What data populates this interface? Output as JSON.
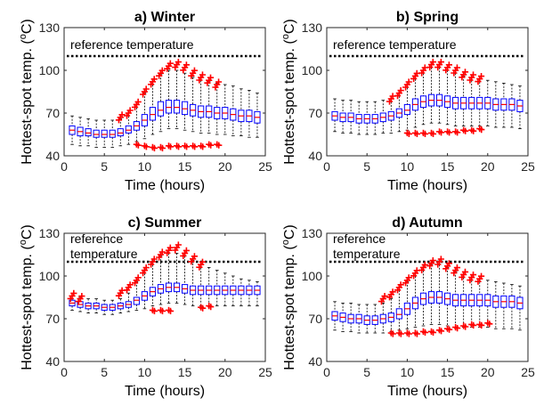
{
  "chart_data": [
    {
      "type": "box",
      "title": "a) Winter",
      "xlabel": "Time (hours)",
      "ylabel": "Hottest-spot temp. (",
      "ylabel_sup": "o",
      "ylabel_end": "C)",
      "xlim": [
        0,
        25
      ],
      "ylim": [
        40,
        130
      ],
      "xticks": [
        0,
        5,
        10,
        15,
        20,
        25
      ],
      "yticks": [
        40,
        70,
        100,
        130
      ],
      "reference_value": 110,
      "reference_label": [
        "reference temperature"
      ],
      "hours": [
        1,
        2,
        3,
        4,
        5,
        6,
        7,
        8,
        9,
        10,
        11,
        12,
        13,
        14,
        15,
        16,
        17,
        18,
        19,
        20,
        21,
        22,
        23,
        24
      ],
      "box_q1": [
        55,
        54,
        54,
        53,
        53,
        53,
        54,
        56,
        58,
        61,
        65,
        68,
        70,
        70,
        69,
        68,
        67,
        67,
        66,
        66,
        65,
        64,
        64,
        63
      ],
      "box_median": [
        58,
        57,
        56,
        55,
        55,
        55,
        56,
        58,
        61,
        65,
        69,
        72,
        74,
        74,
        73,
        72,
        71,
        71,
        70,
        70,
        69,
        68,
        68,
        67
      ],
      "box_q3": [
        61,
        60,
        59,
        58,
        58,
        58,
        59,
        61,
        64,
        69,
        74,
        78,
        79,
        79,
        78,
        76,
        75,
        75,
        74,
        74,
        73,
        72,
        72,
        71
      ],
      "whisker_low": [
        48,
        47,
        47,
        46,
        46,
        46,
        47,
        48,
        50,
        52,
        55,
        57,
        59,
        59,
        58,
        57,
        56,
        56,
        55,
        55,
        54,
        54,
        53,
        53
      ],
      "whisker_high": [
        68,
        67,
        66,
        65,
        65,
        65,
        66,
        70,
        76,
        84,
        92,
        97,
        100,
        100,
        98,
        95,
        93,
        92,
        91,
        90,
        89,
        87,
        86,
        84
      ],
      "outliers_high": [
        [
          7,
          67
        ],
        [
          8,
          70
        ],
        [
          9,
          76
        ],
        [
          10,
          85
        ],
        [
          11,
          92
        ],
        [
          12,
          98
        ],
        [
          13,
          103
        ],
        [
          14,
          104
        ],
        [
          15,
          102
        ],
        [
          16,
          98
        ],
        [
          17,
          95
        ],
        [
          18,
          93
        ],
        [
          19,
          90
        ]
      ],
      "outliers_low": [
        [
          9,
          48
        ],
        [
          10,
          47
        ],
        [
          11,
          46
        ],
        [
          12,
          46
        ],
        [
          13,
          47
        ],
        [
          14,
          47
        ],
        [
          15,
          47
        ],
        [
          16,
          47
        ],
        [
          17,
          47
        ],
        [
          18,
          48
        ],
        [
          19,
          48
        ]
      ]
    },
    {
      "type": "box",
      "title": "b) Spring",
      "xlabel": "Time (hours)",
      "ylabel": "Hottest-spot temp. (",
      "ylabel_sup": "o",
      "ylabel_end": "C)",
      "xlim": [
        0,
        25
      ],
      "ylim": [
        40,
        130
      ],
      "xticks": [
        0,
        5,
        10,
        15,
        20,
        25
      ],
      "yticks": [
        40,
        70,
        100,
        130
      ],
      "reference_value": 110,
      "reference_label": [
        "reference temperature"
      ],
      "hours": [
        1,
        2,
        3,
        4,
        5,
        6,
        7,
        8,
        9,
        10,
        11,
        12,
        13,
        14,
        15,
        16,
        17,
        18,
        19,
        20,
        21,
        22,
        23,
        24
      ],
      "box_q1": [
        65,
        64,
        64,
        63,
        63,
        63,
        64,
        65,
        67,
        69,
        72,
        74,
        75,
        75,
        74,
        73,
        73,
        73,
        73,
        73,
        72,
        72,
        72,
        71
      ],
      "box_median": [
        68,
        67,
        67,
        66,
        66,
        66,
        67,
        68,
        70,
        72,
        76,
        78,
        79,
        79,
        78,
        77,
        77,
        77,
        77,
        77,
        76,
        76,
        76,
        75
      ],
      "box_q3": [
        71,
        70,
        70,
        69,
        69,
        69,
        70,
        71,
        73,
        76,
        80,
        82,
        83,
        83,
        82,
        81,
        81,
        81,
        81,
        81,
        80,
        80,
        80,
        79
      ],
      "whisker_low": [
        57,
        56,
        56,
        55,
        55,
        55,
        56,
        56,
        57,
        58,
        60,
        62,
        63,
        63,
        62,
        61,
        61,
        61,
        61,
        61,
        60,
        60,
        60,
        59
      ],
      "whisker_high": [
        80,
        79,
        79,
        78,
        78,
        78,
        79,
        80,
        84,
        90,
        96,
        100,
        102,
        102,
        100,
        98,
        96,
        95,
        94,
        93,
        92,
        91,
        90,
        89
      ],
      "outliers_high": [
        [
          8,
          80
        ],
        [
          9,
          84
        ],
        [
          10,
          90
        ],
        [
          11,
          96
        ],
        [
          12,
          100
        ],
        [
          13,
          104
        ],
        [
          14,
          104
        ],
        [
          15,
          102
        ],
        [
          16,
          100
        ],
        [
          17,
          97
        ],
        [
          18,
          95
        ],
        [
          19,
          94
        ]
      ],
      "outliers_low": [
        [
          10,
          56
        ],
        [
          11,
          56
        ],
        [
          12,
          56
        ],
        [
          13,
          56
        ],
        [
          14,
          57
        ],
        [
          15,
          57
        ],
        [
          16,
          57
        ],
        [
          17,
          58
        ],
        [
          18,
          58
        ],
        [
          19,
          59
        ]
      ]
    },
    {
      "type": "box",
      "title": "c) Summer",
      "xlabel": "Time (hours)",
      "ylabel": "Hottest-spot temp. (",
      "ylabel_sup": "o",
      "ylabel_end": "C)",
      "xlim": [
        0,
        25
      ],
      "ylim": [
        40,
        130
      ],
      "xticks": [
        0,
        5,
        10,
        15,
        20,
        25
      ],
      "yticks": [
        40,
        70,
        100,
        130
      ],
      "reference_value": 110,
      "reference_label": [
        "reference",
        "temperature"
      ],
      "hours": [
        1,
        2,
        3,
        4,
        5,
        6,
        7,
        8,
        9,
        10,
        11,
        12,
        13,
        14,
        15,
        16,
        17,
        18,
        19,
        20,
        21,
        22,
        23,
        24
      ],
      "box_q1": [
        79,
        78,
        77,
        77,
        76,
        76,
        77,
        78,
        80,
        83,
        86,
        88,
        89,
        89,
        88,
        87,
        87,
        87,
        87,
        87,
        87,
        87,
        87,
        87
      ],
      "box_median": [
        81,
        80,
        79,
        79,
        78,
        78,
        79,
        80,
        83,
        86,
        89,
        91,
        92,
        92,
        91,
        90,
        90,
        90,
        90,
        90,
        90,
        90,
        90,
        90
      ],
      "box_q3": [
        83,
        82,
        81,
        81,
        80,
        80,
        81,
        82,
        85,
        89,
        92,
        94,
        95,
        95,
        94,
        93,
        93,
        93,
        93,
        93,
        93,
        93,
        93,
        93
      ],
      "whisker_low": [
        76,
        75,
        74,
        74,
        73,
        73,
        74,
        75,
        76,
        77,
        79,
        80,
        81,
        81,
        80,
        79,
        79,
        79,
        79,
        79,
        79,
        79,
        79,
        79
      ],
      "whisker_high": [
        86,
        85,
        84,
        84,
        83,
        83,
        84,
        88,
        96,
        104,
        110,
        114,
        116,
        116,
        114,
        111,
        108,
        106,
        104,
        102,
        100,
        98,
        97,
        96
      ],
      "outliers_high": [
        [
          1,
          86
        ],
        [
          2,
          84
        ],
        [
          7,
          88
        ],
        [
          8,
          92
        ],
        [
          9,
          97
        ],
        [
          10,
          104
        ],
        [
          11,
          110
        ],
        [
          12,
          115
        ],
        [
          13,
          118
        ],
        [
          14,
          120
        ],
        [
          15,
          116
        ],
        [
          16,
          112
        ],
        [
          17,
          108
        ]
      ],
      "outliers_low": [
        [
          11,
          76
        ],
        [
          12,
          76
        ],
        [
          13,
          76
        ],
        [
          17,
          78
        ],
        [
          18,
          79
        ]
      ]
    },
    {
      "type": "box",
      "title": "d) Autumn",
      "xlabel": "Time (hours)",
      "ylabel": "Hottest-spot temp. (",
      "ylabel_sup": "o",
      "ylabel_end": "C)",
      "xlim": [
        0,
        25
      ],
      "ylim": [
        40,
        130
      ],
      "xticks": [
        0,
        5,
        10,
        15,
        20,
        25
      ],
      "yticks": [
        40,
        70,
        100,
        130
      ],
      "reference_value": 110,
      "reference_label": [
        "reference",
        "temperature"
      ],
      "hours": [
        1,
        2,
        3,
        4,
        5,
        6,
        7,
        8,
        9,
        10,
        11,
        12,
        13,
        14,
        15,
        16,
        17,
        18,
        19,
        20,
        21,
        22,
        23,
        24
      ],
      "box_q1": [
        69,
        68,
        67,
        67,
        66,
        66,
        67,
        68,
        70,
        73,
        77,
        80,
        81,
        81,
        80,
        79,
        79,
        79,
        79,
        79,
        78,
        78,
        78,
        77
      ],
      "box_median": [
        72,
        71,
        70,
        70,
        69,
        69,
        70,
        71,
        73,
        77,
        81,
        84,
        85,
        85,
        84,
        83,
        83,
        83,
        83,
        83,
        82,
        82,
        82,
        81
      ],
      "box_q3": [
        75,
        74,
        73,
        73,
        72,
        72,
        73,
        74,
        77,
        81,
        85,
        88,
        89,
        89,
        88,
        87,
        87,
        87,
        87,
        87,
        86,
        86,
        86,
        85
      ],
      "whisker_low": [
        62,
        61,
        61,
        60,
        60,
        60,
        60,
        61,
        62,
        63,
        64,
        65,
        66,
        66,
        65,
        64,
        64,
        64,
        64,
        64,
        63,
        63,
        63,
        62
      ],
      "whisker_high": [
        82,
        81,
        81,
        80,
        80,
        80,
        81,
        84,
        90,
        96,
        102,
        106,
        108,
        108,
        106,
        103,
        101,
        99,
        98,
        97,
        96,
        95,
        94,
        93
      ],
      "outliers_high": [
        [
          7,
          84
        ],
        [
          8,
          87
        ],
        [
          9,
          92
        ],
        [
          10,
          97
        ],
        [
          11,
          102
        ],
        [
          12,
          106
        ],
        [
          13,
          109
        ],
        [
          14,
          110
        ],
        [
          15,
          107
        ],
        [
          16,
          104
        ],
        [
          17,
          101
        ],
        [
          18,
          99
        ],
        [
          19,
          98
        ]
      ],
      "outliers_low": [
        [
          8,
          60
        ],
        [
          9,
          60
        ],
        [
          10,
          60
        ],
        [
          11,
          60
        ],
        [
          12,
          61
        ],
        [
          13,
          61
        ],
        [
          14,
          62
        ],
        [
          15,
          63
        ],
        [
          16,
          64
        ],
        [
          17,
          65
        ],
        [
          18,
          66
        ],
        [
          19,
          66
        ],
        [
          20,
          67
        ]
      ]
    }
  ],
  "colors": {
    "box": "#0000ff",
    "median": "#ff0000",
    "outlier": "#ff0000",
    "whisker": "#000000",
    "axis": "#262626",
    "reference_line": "#000000"
  }
}
